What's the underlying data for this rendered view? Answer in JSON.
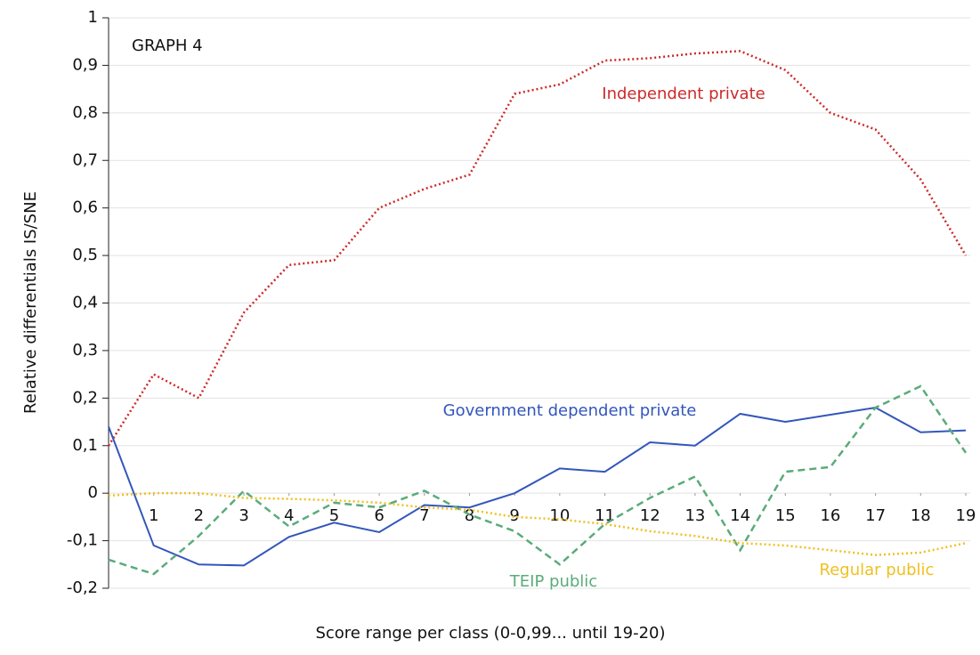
{
  "chart_data": {
    "type": "line",
    "annotation": "GRAPH 4",
    "x_label": "Score range per class (0-0,99... until 19-20)",
    "y_label": "Relative differentials IS/SNE",
    "x": [
      0,
      1,
      2,
      3,
      4,
      5,
      6,
      7,
      8,
      9,
      10,
      11,
      12,
      13,
      14,
      15,
      16,
      17,
      18,
      19
    ],
    "xlim": [
      0,
      19
    ],
    "xticks": [
      1,
      2,
      3,
      4,
      5,
      6,
      7,
      8,
      9,
      10,
      11,
      12,
      13,
      14,
      15,
      16,
      17,
      18,
      19
    ],
    "ylim": [
      -0.2,
      1
    ],
    "yticks": [
      1,
      {
        "value": 0.9,
        "label": "0,9"
      },
      {
        "value": 0.8,
        "label": "0,8"
      },
      {
        "value": 0.7,
        "label": "0,7"
      },
      {
        "value": 0.6,
        "label": "0,6"
      },
      {
        "value": 0.5,
        "label": "0,5"
      },
      {
        "value": 0.4,
        "label": "0,4"
      },
      {
        "value": 0.3,
        "label": "0,3"
      },
      {
        "value": 0.2,
        "label": "0,2"
      },
      {
        "value": 0.1,
        "label": "0,1"
      },
      0,
      {
        "value": -0.1,
        "label": "-0,1"
      },
      {
        "value": -0.2,
        "label": "-0,2"
      }
    ],
    "grid": true,
    "series": [
      {
        "name": "Independent private",
        "color": "#cc2a2a",
        "style": "dotted",
        "values": [
          0.1,
          0.25,
          0.2,
          0.38,
          0.48,
          0.49,
          0.6,
          0.64,
          0.67,
          0.84,
          0.86,
          0.91,
          0.915,
          0.925,
          0.93,
          0.89,
          0.8,
          0.765,
          0.66,
          0.5
        ]
      },
      {
        "name": "Government dependent private",
        "color": "#3356bb",
        "style": "solid",
        "values": [
          0.14,
          -0.11,
          -0.15,
          -0.152,
          -0.092,
          -0.062,
          -0.082,
          -0.025,
          -0.03,
          0.0,
          0.052,
          0.045,
          0.107,
          0.1,
          0.167,
          0.15,
          0.165,
          0.18,
          0.128,
          0.132
        ]
      },
      {
        "name": "TEIP public",
        "color": "#5aab7a",
        "style": "dashed",
        "values": [
          -0.14,
          -0.17,
          -0.09,
          0.005,
          -0.07,
          -0.02,
          -0.03,
          0.005,
          -0.045,
          -0.08,
          -0.15,
          -0.065,
          -0.01,
          0.035,
          -0.12,
          0.045,
          0.055,
          0.18,
          0.225,
          0.085
        ]
      },
      {
        "name": "Regular public",
        "color": "#f0c020",
        "style": "dotted",
        "values": [
          -0.005,
          0.0,
          0.0,
          -0.01,
          -0.012,
          -0.015,
          -0.02,
          -0.03,
          -0.035,
          -0.05,
          -0.055,
          -0.065,
          -0.08,
          -0.09,
          -0.105,
          -0.11,
          -0.12,
          -0.13,
          -0.125,
          -0.105
        ]
      }
    ]
  }
}
